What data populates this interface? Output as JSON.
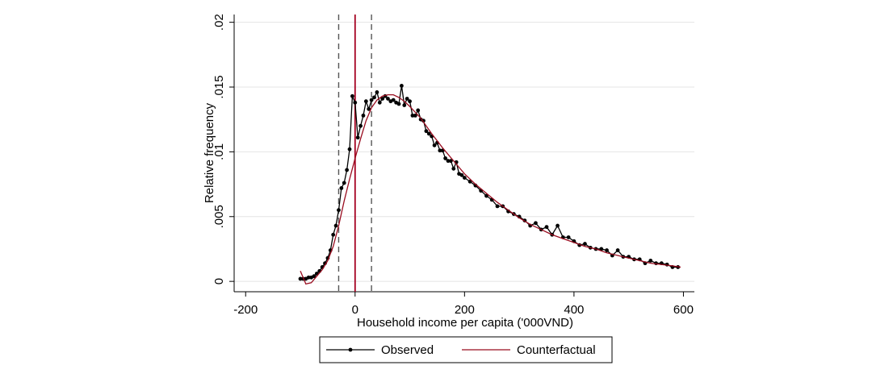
{
  "chart_data": {
    "type": "line",
    "xlabel": "Household income per capita ('000VND)",
    "ylabel": "Relative frequency",
    "xlim": [
      -221,
      620
    ],
    "ylim": [
      -0.0008,
      0.0206
    ],
    "xticks": [
      -200,
      0,
      200,
      400,
      600
    ],
    "yticks": [
      0,
      {
        "value": 0.005,
        "label": ".005"
      },
      {
        "value": 0.01,
        "label": ".01"
      },
      {
        "value": 0.015,
        "label": ".015"
      },
      {
        "value": 0.02,
        "label": ".02"
      }
    ],
    "grid": true,
    "legend": "bottom",
    "vlines": [
      {
        "x": -30,
        "color": "#555555",
        "dashed": true
      },
      {
        "x": 0,
        "color": "#a50021",
        "dashed": false
      },
      {
        "x": 30,
        "color": "#555555",
        "dashed": true
      }
    ],
    "series": [
      {
        "name": "Observed",
        "color": "#000000",
        "markers": true,
        "x": [
          -100,
          -95,
          -90,
          -85,
          -80,
          -75,
          -70,
          -65,
          -60,
          -55,
          -50,
          -45,
          -40,
          -35,
          -30,
          -25,
          -20,
          -15,
          -10,
          -5,
          0,
          5,
          10,
          15,
          20,
          25,
          30,
          35,
          40,
          45,
          50,
          55,
          60,
          65,
          70,
          75,
          80,
          85,
          90,
          95,
          100,
          105,
          110,
          115,
          120,
          125,
          130,
          135,
          140,
          145,
          150,
          155,
          160,
          165,
          170,
          175,
          180,
          185,
          190,
          195,
          200,
          210,
          220,
          230,
          240,
          250,
          260,
          270,
          280,
          290,
          300,
          310,
          320,
          330,
          340,
          350,
          360,
          370,
          380,
          390,
          400,
          410,
          420,
          430,
          440,
          450,
          460,
          470,
          480,
          490,
          500,
          510,
          520,
          530,
          540,
          550,
          560,
          570,
          580,
          590
        ],
        "values": [
          0.0002,
          0.0002,
          0.0002,
          0.0003,
          0.0003,
          0.0004,
          0.0006,
          0.0008,
          0.0011,
          0.0014,
          0.0018,
          0.0024,
          0.0036,
          0.0043,
          0.0055,
          0.0072,
          0.0076,
          0.0086,
          0.0102,
          0.0143,
          0.0138,
          0.0111,
          0.012,
          0.0128,
          0.0139,
          0.0133,
          0.014,
          0.0142,
          0.0146,
          0.0138,
          0.0141,
          0.0143,
          0.0141,
          0.0139,
          0.014,
          0.0138,
          0.0137,
          0.0151,
          0.0136,
          0.0141,
          0.0139,
          0.0128,
          0.0128,
          0.0132,
          0.0125,
          0.0124,
          0.0116,
          0.0114,
          0.0112,
          0.0105,
          0.0107,
          0.0101,
          0.0101,
          0.0095,
          0.0093,
          0.0093,
          0.0087,
          0.0092,
          0.0083,
          0.0082,
          0.008,
          0.0077,
          0.0074,
          0.007,
          0.0066,
          0.0063,
          0.0058,
          0.0058,
          0.0054,
          0.0052,
          0.005,
          0.0047,
          0.0043,
          0.0045,
          0.004,
          0.0042,
          0.0036,
          0.0043,
          0.0034,
          0.0034,
          0.0031,
          0.0028,
          0.0029,
          0.0026,
          0.0025,
          0.0025,
          0.0024,
          0.002,
          0.0024,
          0.0019,
          0.0019,
          0.0017,
          0.0017,
          0.0014,
          0.0016,
          0.0014,
          0.0014,
          0.0013,
          0.0011,
          0.0011
        ]
      },
      {
        "name": "Counterfactual",
        "color": "#990c1f",
        "markers": false,
        "x": [
          -100,
          -90,
          -80,
          -70,
          -60,
          -50,
          -40,
          -30,
          -20,
          -10,
          0,
          10,
          20,
          30,
          40,
          50,
          60,
          70,
          80,
          90,
          100,
          120,
          140,
          160,
          180,
          200,
          220,
          240,
          260,
          280,
          300,
          320,
          340,
          360,
          380,
          400,
          420,
          440,
          460,
          480,
          500,
          520,
          540,
          560,
          580,
          595
        ],
        "values": [
          0.0008,
          -0.0002,
          -0.0001,
          0.0004,
          0.0009,
          0.0016,
          0.0027,
          0.0043,
          0.0062,
          0.0079,
          0.0095,
          0.011,
          0.0124,
          0.0134,
          0.014,
          0.0143,
          0.0144,
          0.0144,
          0.0142,
          0.0139,
          0.0135,
          0.0126,
          0.0114,
          0.0103,
          0.0093,
          0.0083,
          0.0075,
          0.0068,
          0.0061,
          0.0055,
          0.0049,
          0.0044,
          0.004,
          0.0036,
          0.0033,
          0.003,
          0.0027,
          0.0025,
          0.0022,
          0.002,
          0.0018,
          0.0016,
          0.0014,
          0.0013,
          0.0012,
          0.0011
        ]
      }
    ]
  }
}
